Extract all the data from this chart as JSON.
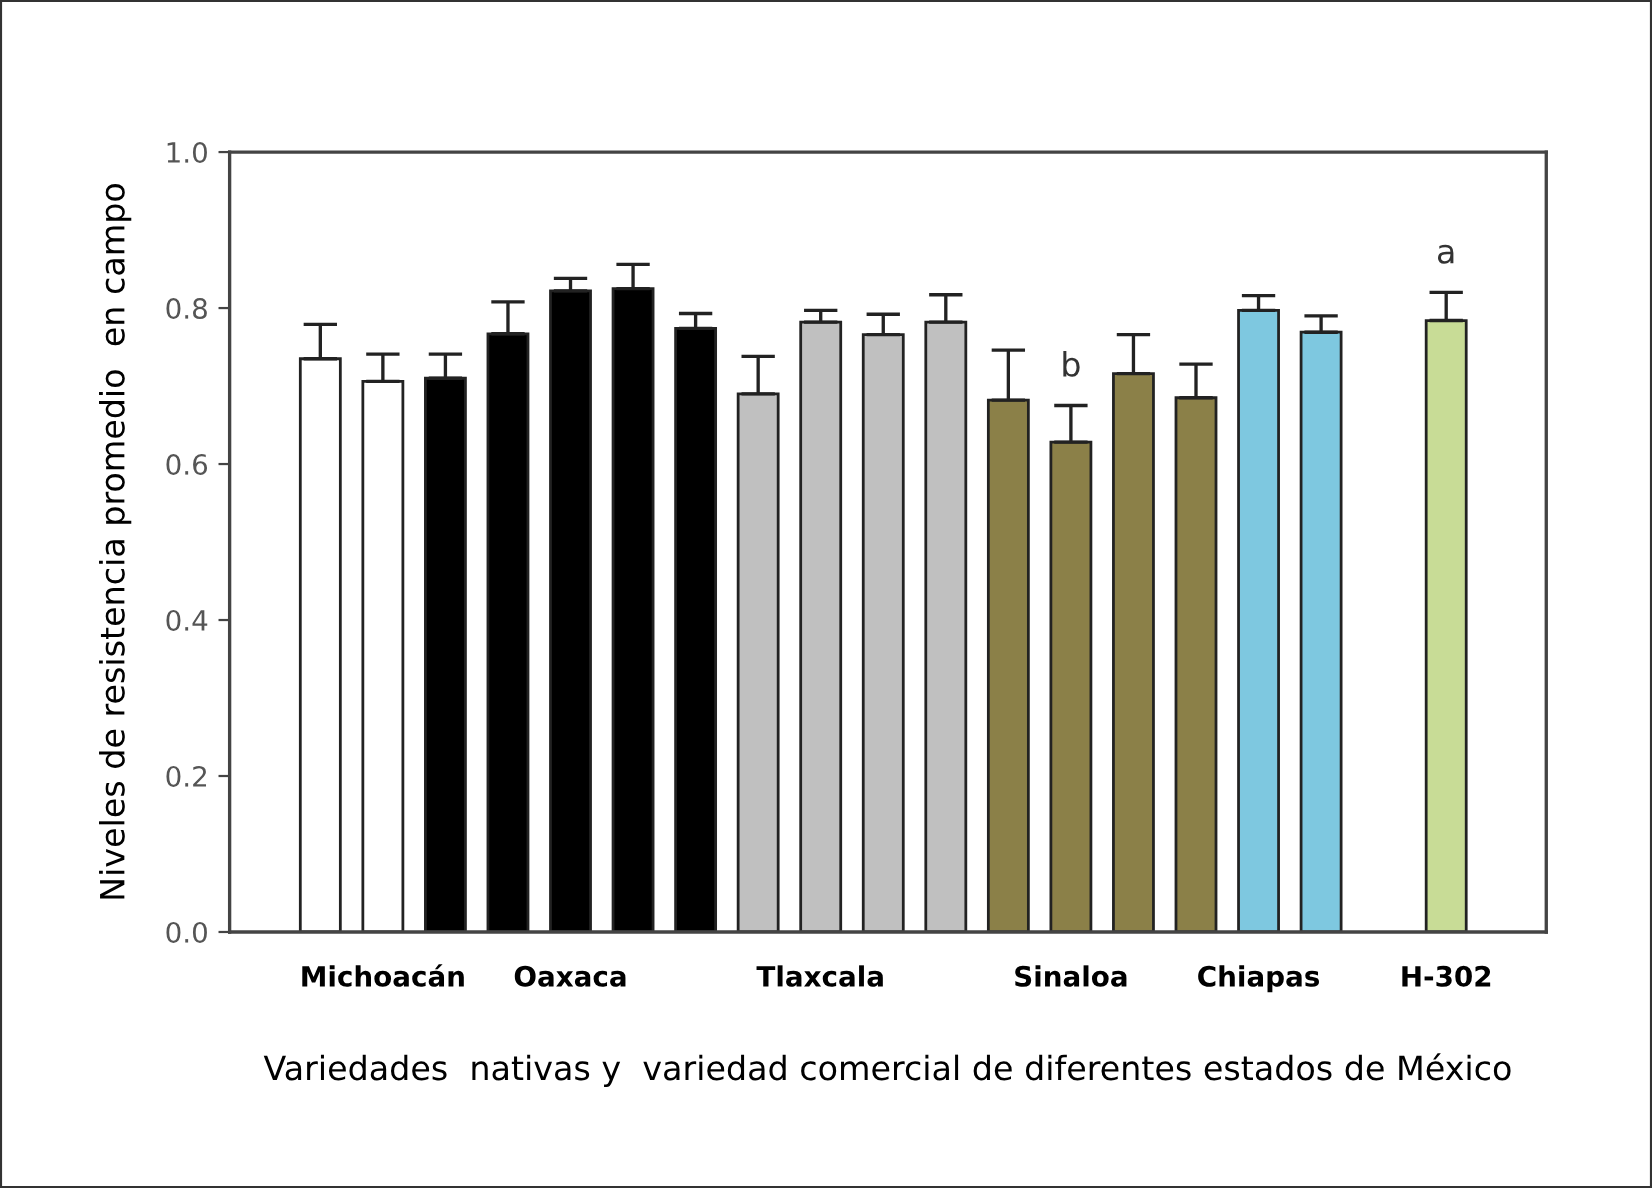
{
  "chart_data": {
    "type": "bar",
    "xlabel": "Variedades  nativas y  variedad comercial de diferentes estados de México",
    "ylabel": "Niveles de resistencia promedio  en campo",
    "categories": [
      null,
      "Michoacán",
      null,
      null,
      "Oaxaca",
      null,
      null,
      null,
      "Tlaxcala",
      null,
      null,
      null,
      "Sinaloa",
      null,
      null,
      "Chiapas",
      null,
      null,
      "H-302"
    ],
    "values": [
      0.735,
      0.706,
      0.71,
      0.767,
      0.822,
      0.825,
      0.774,
      0.69,
      0.782,
      0.766,
      0.782,
      0.682,
      0.628,
      0.716,
      0.685,
      0.797,
      0.769,
      null,
      0.784
    ],
    "errors": [
      [
        0.735,
        0.779
      ],
      [
        0.706,
        0.741
      ],
      [
        0.71,
        0.741
      ],
      [
        0.767,
        0.808
      ],
      [
        0.822,
        0.838
      ],
      [
        0.825,
        0.856
      ],
      [
        0.774,
        0.793
      ],
      [
        0.69,
        0.738
      ],
      [
        0.782,
        0.797
      ],
      [
        0.766,
        0.792
      ],
      [
        0.782,
        0.817
      ],
      [
        0.682,
        0.746
      ],
      [
        0.628,
        0.675
      ],
      [
        0.716,
        0.766
      ],
      [
        0.685,
        0.728
      ],
      [
        0.797,
        0.816
      ],
      [
        0.769,
        0.79
      ],
      null,
      [
        0.784,
        0.82
      ]
    ],
    "value_labels": [
      null,
      null,
      null,
      null,
      null,
      null,
      null,
      null,
      null,
      null,
      null,
      null,
      "b",
      null,
      null,
      null,
      null,
      null,
      "a"
    ],
    "colors": [
      "#ffffff",
      "#ffffff",
      "#000000",
      "#000000",
      "#000000",
      "#000000",
      "#000000",
      "#c0c0c0",
      "#c0c0c0",
      "#c0c0c0",
      "#c0c0c0",
      "#8b8048",
      "#8b8048",
      "#8b8048",
      "#8b8048",
      "#7ec8e0",
      "#7ec8e0",
      "#ffffff",
      "#c8dc96"
    ],
    "ylim": [
      0,
      1
    ],
    "yticks": [
      {
        "value": 0,
        "label": "0.0"
      },
      0.2,
      0.4,
      0.6,
      0.8,
      {
        "value": 1,
        "label": "1.0"
      }
    ],
    "grid": false
  }
}
